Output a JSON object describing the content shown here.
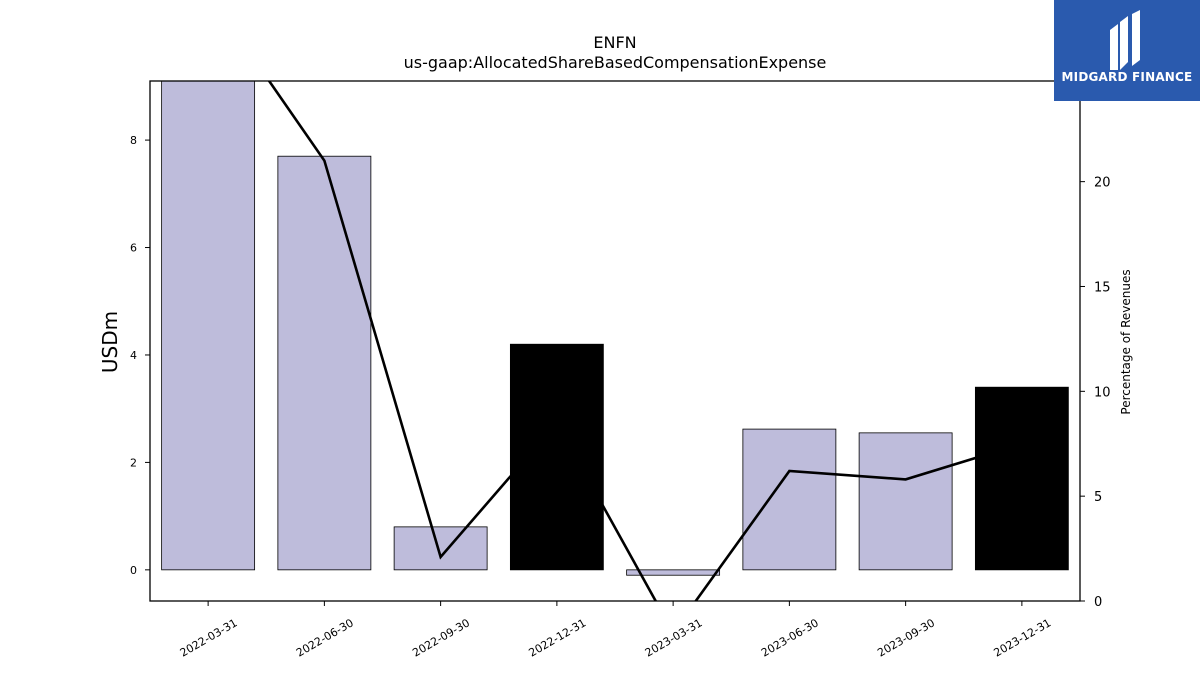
{
  "brand": {
    "name": "MIDGARD FINANCE",
    "bg": "#2a5aae"
  },
  "chart_data": {
    "type": "bar",
    "title": "ENFN",
    "subtitle": "us-gaap:AllocatedShareBasedCompensationExpense",
    "ylabel": "USDm",
    "y2label": "Percentage of Revenues",
    "categories": [
      "2022-03-31",
      "2022-06-30",
      "2022-09-30",
      "2022-12-31",
      "2023-03-31",
      "2023-06-30",
      "2023-09-30",
      "2023-12-31"
    ],
    "series": [
      {
        "kind": "bar",
        "values": [
          9.1,
          7.7,
          0.8,
          4.2,
          -0.1,
          2.62,
          2.55,
          3.4
        ],
        "colors": [
          "#bebcdb",
          "#bebcdb",
          "#bebcdb",
          "#000000",
          "#bebcdb",
          "#bebcdb",
          "#bebcdb",
          "#000000"
        ]
      },
      {
        "kind": "line",
        "axis": "right",
        "color": "#000000",
        "values": [
          29,
          21,
          2.1,
          8.5,
          -1.5,
          6.2,
          5.8,
          7.5
        ]
      }
    ],
    "ylim": [
      -0.58,
      9.1
    ],
    "y2lim": [
      0,
      24.8
    ],
    "yticks": [
      0,
      2,
      4,
      6,
      8
    ],
    "y2ticks": [
      0,
      5,
      10,
      15,
      20
    ],
    "grid": false
  }
}
